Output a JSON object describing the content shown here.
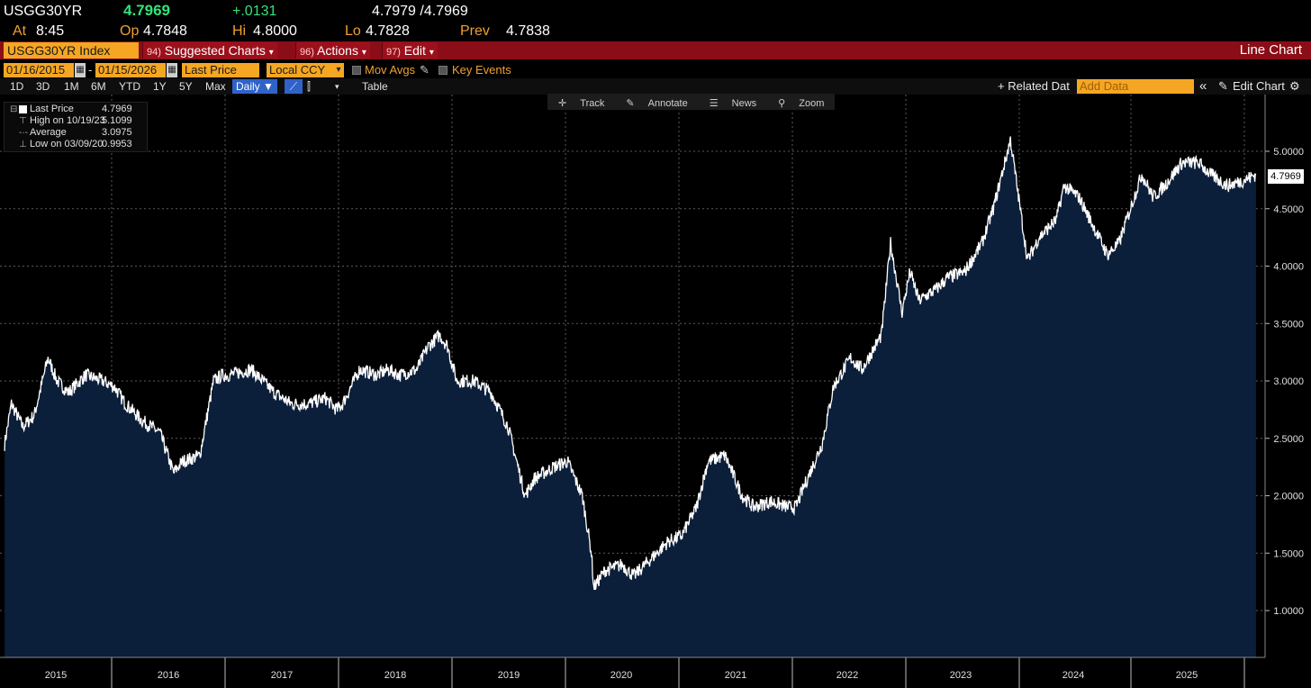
{
  "quote": {
    "ticker": "USGG30YR",
    "last": "4.7969",
    "change": "+.0131",
    "bid_ask": "4.7979 /4.7969",
    "at_label": "At",
    "time": "8:45",
    "open_label": "Op",
    "open": "4.7848",
    "high_label": "Hi",
    "high": "4.8000",
    "low_label": "Lo",
    "low": "4.7828",
    "prev_label": "Prev",
    "prev": "4.7838"
  },
  "titlebar": {
    "security": "USGG30YR Index",
    "menus": [
      {
        "num": "94)",
        "label": "Suggested Charts",
        "caret": "▾"
      },
      {
        "num": "96)",
        "label": "Actions",
        "caret": "▾"
      },
      {
        "num": "97)",
        "label": "Edit",
        "caret": "▾"
      }
    ],
    "chart_type": "Line Chart"
  },
  "settings": {
    "start_date": "01/16/2015",
    "end_date": "01/15/2026",
    "date_sep": "-",
    "field": "Last Price",
    "currency": "Local CCY",
    "mov_avgs": "Mov Avgs",
    "key_events": "Key Events"
  },
  "periods": {
    "buttons": [
      "1D",
      "3D",
      "1M",
      "6M",
      "YTD",
      "1Y",
      "5Y",
      "Max"
    ],
    "frequency": "Daily ▼",
    "table": "Table",
    "related": "+ Related Dat",
    "add_data_placeholder": "Add Data",
    "collapse": "«",
    "edit_chart": "Edit Chart",
    "gear": "⚙"
  },
  "chart_tools": {
    "track": "Track",
    "annotate": "Annotate",
    "news": "News",
    "zoom": "Zoom"
  },
  "legend": {
    "last_label": "Last Price",
    "last_value": "4.7969",
    "high_label": "High on 10/19/23",
    "high_value": "5.1099",
    "avg_label": "Average",
    "avg_value": "3.0975",
    "low_label": "Low on 03/09/20",
    "low_value": "0.9953"
  },
  "colors": {
    "background": "#000000",
    "area_fill": "#0b1e3a",
    "line": "#ffffff",
    "grid": "#5a5a5a",
    "title_bar": "#8b0d17",
    "field_amber": "#f5a623",
    "quote_green": "#33e27a",
    "label_amber": "#f0a030"
  },
  "chart_data": {
    "type": "area",
    "title": "",
    "xlabel": "",
    "ylabel": "",
    "ylim": [
      0.5,
      5.5
    ],
    "yticks": [
      "1.0000",
      "1.5000",
      "2.0000",
      "2.5000",
      "3.0000",
      "3.5000",
      "4.0000",
      "4.5000",
      "5.0000"
    ],
    "year_labels": [
      "2015",
      "2016",
      "2017",
      "2018",
      "2019",
      "2020",
      "2021",
      "2022",
      "2023",
      "2024",
      "2025"
    ],
    "last_value_tag": "4.7969",
    "series": [
      {
        "name": "Last Price",
        "x": [
          2015.04,
          2015.1,
          2015.2,
          2015.3,
          2015.42,
          2015.5,
          2015.6,
          2015.75,
          2015.9,
          2016.0,
          2016.1,
          2016.25,
          2016.4,
          2016.52,
          2016.6,
          2016.75,
          2016.87,
          2016.95,
          2017.0,
          2017.2,
          2017.4,
          2017.55,
          2017.7,
          2017.85,
          2017.95,
          2018.0,
          2018.15,
          2018.3,
          2018.4,
          2018.5,
          2018.65,
          2018.75,
          2018.85,
          2018.92,
          2019.0,
          2019.15,
          2019.3,
          2019.45,
          2019.6,
          2019.68,
          2019.85,
          2019.97,
          2020.1,
          2020.18,
          2020.2,
          2020.3,
          2020.45,
          2020.55,
          2020.7,
          2020.85,
          2020.97,
          2021.1,
          2021.2,
          2021.35,
          2021.5,
          2021.6,
          2021.75,
          2021.9,
          2021.97,
          2022.05,
          2022.2,
          2022.3,
          2022.45,
          2022.55,
          2022.72,
          2022.8,
          2022.9,
          2022.97,
          2023.05,
          2023.2,
          2023.3,
          2023.45,
          2023.6,
          2023.7,
          2023.8,
          2023.85,
          2023.95,
          2024.0,
          2024.1,
          2024.25,
          2024.32,
          2024.45,
          2024.55,
          2024.7,
          2024.8,
          2024.9,
          2025.0,
          2025.1,
          2025.2,
          2025.35,
          2025.5,
          2025.6,
          2025.75,
          2025.9,
          2026.0
        ],
        "y": [
          2.45,
          2.8,
          2.6,
          2.7,
          3.2,
          3.0,
          2.9,
          3.05,
          3.0,
          2.95,
          2.8,
          2.65,
          2.55,
          2.2,
          2.3,
          2.35,
          3.0,
          3.05,
          3.05,
          3.1,
          2.9,
          2.8,
          2.8,
          2.85,
          2.75,
          2.8,
          3.1,
          3.05,
          3.1,
          3.05,
          3.1,
          3.3,
          3.4,
          3.3,
          3.0,
          3.0,
          2.9,
          2.6,
          2.0,
          2.15,
          2.25,
          2.3,
          2.0,
          1.5,
          1.2,
          1.35,
          1.4,
          1.3,
          1.45,
          1.6,
          1.65,
          1.9,
          2.3,
          2.35,
          2.0,
          1.9,
          1.95,
          1.9,
          1.9,
          2.1,
          2.45,
          2.95,
          3.2,
          3.1,
          3.4,
          4.2,
          3.6,
          3.95,
          3.7,
          3.8,
          3.9,
          3.95,
          4.2,
          4.5,
          4.9,
          5.1,
          4.4,
          4.05,
          4.25,
          4.4,
          4.7,
          4.6,
          4.4,
          4.1,
          4.2,
          4.5,
          4.8,
          4.6,
          4.7,
          4.9,
          4.9,
          4.8,
          4.7,
          4.75,
          4.7969
        ]
      }
    ]
  }
}
